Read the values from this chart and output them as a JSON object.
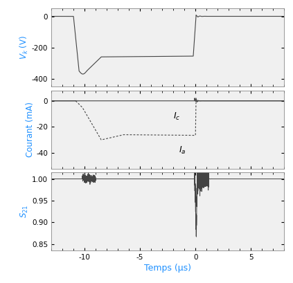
{
  "xlim": [
    -13,
    8
  ],
  "xticks": [
    -10,
    -5,
    0,
    5
  ],
  "xlabel": "Temps (μs)",
  "xlabel_color": "#1e90ff",
  "panel1_ylabel": "$V_k$ (V)",
  "panel1_ylim": [
    -450,
    50
  ],
  "panel1_yticks": [
    0,
    -200,
    -400
  ],
  "panel1_ylabel_color": "#1e90ff",
  "panel2_ylabel": "Courant (mA)",
  "panel2_ylim": [
    -52,
    8
  ],
  "panel2_yticks": [
    0,
    -20,
    -40
  ],
  "panel2_ylabel_color": "#1e90ff",
  "panel3_ylabel": "$S_{21}$",
  "panel3_ylim": [
    0.835,
    1.015
  ],
  "panel3_yticks": [
    1.0,
    0.95,
    0.9,
    0.85
  ],
  "panel3_ylabel_color": "#1e90ff",
  "line_color": "#444444",
  "background_color": "#ffffff",
  "panel_bg": "#f0f0f0"
}
